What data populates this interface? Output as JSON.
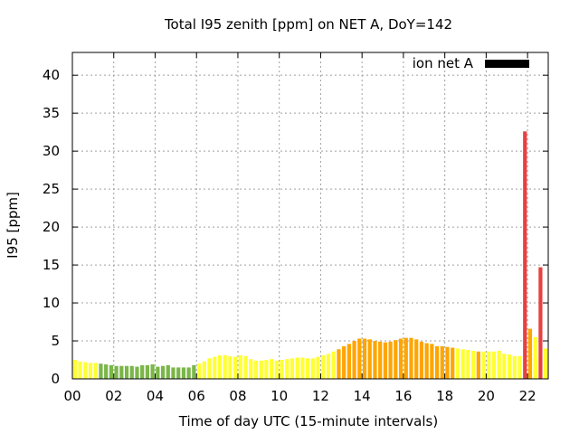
{
  "chart_data": {
    "type": "bar",
    "title": "Total I95 zenith [ppm] on NET A, DoY=142",
    "xlabel": "Time of day UTC (15-minute intervals)",
    "ylabel": "I95 [ppm]",
    "xlim": [
      0,
      23
    ],
    "ylim": [
      0,
      43
    ],
    "xticks": [
      0,
      2,
      4,
      6,
      8,
      10,
      12,
      14,
      16,
      18,
      20,
      22
    ],
    "xtick_labels": [
      "00",
      "02",
      "04",
      "06",
      "08",
      "10",
      "12",
      "14",
      "16",
      "18",
      "20",
      "22"
    ],
    "yticks": [
      0,
      5,
      10,
      15,
      20,
      25,
      30,
      35,
      40
    ],
    "grid": true,
    "legend": {
      "label": "ion net A",
      "color": "#000000",
      "placement": "top-right"
    },
    "interval_hours": 0.25,
    "colors": {
      "green": "#7ab648",
      "yellow": "#ffff33",
      "orange": "#ffa500",
      "red": "#e84040"
    },
    "series": [
      {
        "x_start": 0.0,
        "values": [
          2.5,
          2.3,
          2.2,
          2.1,
          2.1,
          2.0,
          1.9,
          1.8,
          1.7,
          1.7,
          1.7,
          1.7,
          1.6,
          1.8,
          1.8,
          1.9,
          1.6,
          1.7,
          1.8,
          1.5,
          1.5,
          1.5,
          1.5,
          1.8,
          2.0,
          2.3,
          2.7,
          2.9,
          3.1,
          3.1,
          3.0,
          2.9,
          3.1,
          3.0,
          2.6,
          2.4,
          2.4,
          2.5,
          2.6,
          2.4,
          2.5,
          2.6,
          2.7,
          2.8,
          2.8,
          2.7,
          2.7,
          2.9,
          3.1,
          3.3,
          3.6,
          3.9,
          4.3,
          4.6,
          5.0,
          5.3,
          5.3,
          5.2,
          5.0,
          4.9,
          4.8,
          4.9,
          5.1,
          5.3,
          5.4,
          5.4,
          5.2,
          4.9,
          4.7,
          4.6,
          4.3,
          4.3,
          4.2,
          4.1,
          4.0,
          3.9,
          3.8,
          3.7,
          3.6,
          3.6,
          3.6,
          3.6,
          3.7,
          3.3,
          3.2,
          3.0,
          3.0,
          2.8,
          2.6,
          2.7,
          2.8,
          3.0
        ],
        "colors": [
          "yellow",
          "yellow",
          "yellow",
          "yellow",
          "yellow",
          "green",
          "green",
          "green",
          "green",
          "green",
          "green",
          "green",
          "green",
          "green",
          "green",
          "green",
          "green",
          "green",
          "green",
          "green",
          "green",
          "green",
          "green",
          "green",
          "yellow",
          "yellow",
          "yellow",
          "yellow",
          "yellow",
          "yellow",
          "yellow",
          "yellow",
          "yellow",
          "yellow",
          "yellow",
          "yellow",
          "yellow",
          "yellow",
          "yellow",
          "yellow",
          "yellow",
          "yellow",
          "yellow",
          "yellow",
          "yellow",
          "yellow",
          "yellow",
          "yellow",
          "yellow",
          "yellow",
          "yellow",
          "orange",
          "orange",
          "orange",
          "orange",
          "orange",
          "orange",
          "orange",
          "orange",
          "orange",
          "orange",
          "orange",
          "orange",
          "orange",
          "orange",
          "orange",
          "orange",
          "orange",
          "orange",
          "orange",
          "orange",
          "orange",
          "orange",
          "orange",
          "yellow",
          "yellow",
          "yellow",
          "yellow",
          "orange",
          "yellow",
          "yellow",
          "yellow",
          "yellow",
          "yellow",
          "yellow",
          "yellow",
          "yellow",
          "yellow",
          "yellow",
          "yellow",
          "yellow",
          "yellow"
        ]
      }
    ],
    "extra_bars": [
      {
        "x": 21.75,
        "value": 32.6,
        "color": "red"
      },
      {
        "x": 22.0,
        "value": 6.6,
        "color": "orange"
      },
      {
        "x": 22.25,
        "value": 5.5,
        "color": "yellow"
      },
      {
        "x": 22.5,
        "value": 14.7,
        "color": "red"
      },
      {
        "x": 22.75,
        "value": 4.0,
        "color": "yellow"
      }
    ]
  }
}
